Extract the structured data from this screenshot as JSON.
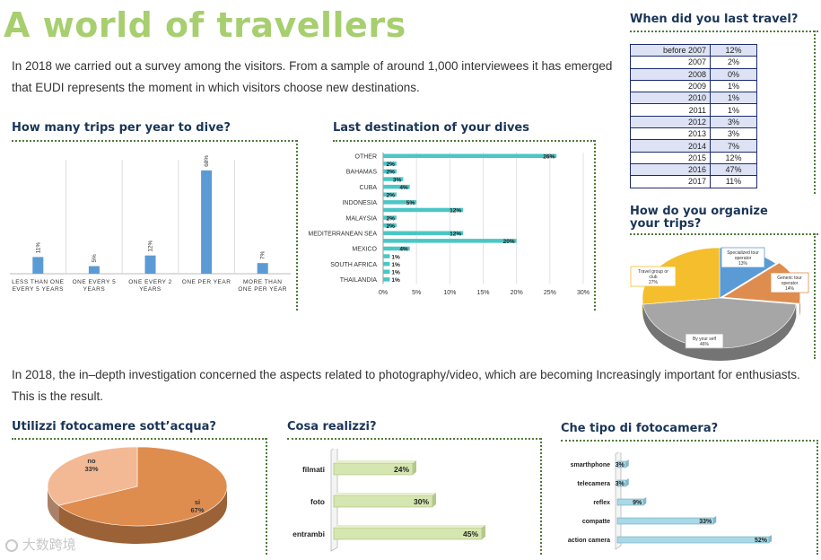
{
  "title": "A world of travellers",
  "intro": "In 2018 we carried out a survey among the visitors. From a sample of around 1,000 interviewees it has emerged that EUDI represents the moment in which visitors choose new destinations.",
  "intro2": "In 2018, the in–depth investigation concerned the aspects related to photography/video, which are becoming Increasingly important for enthusiasts. This is the result.",
  "sections": {
    "trips": "How many trips per year to dive?",
    "destination": "Last destination of your dives",
    "last_travel": "When did you last travel?",
    "organize": "How do you organize your trips?",
    "camera_use": "Utilizzi fotocamere sott’acqua?",
    "realize": "Cosa realizzi?",
    "camera_type": "Che tipo di fotocamera?"
  },
  "watermark": "大数跨境",
  "colors": {
    "title": "#a7cf6f",
    "bar_blue": "#5b9bd5",
    "bar_teal": "#4bc6c6",
    "bar_green": "#d6e6b0",
    "bar_lightblue": "#a9d8e6",
    "pie_orange": "#df8c4f",
    "pie_peach": "#f3b995",
    "pie_yellow": "#f5be2c",
    "pie_gray": "#a6a6a6"
  },
  "chart_data": [
    {
      "id": "trips",
      "type": "bar",
      "categories": [
        "LESS THAN ONE EVERY 5 YEARS",
        "ONE EVERY 5 YEARS",
        "ONE EVERY 2 YEARS",
        "ONE PER YEAR",
        "MORE THAN ONE PER YEAR"
      ],
      "values": [
        11,
        5,
        12,
        68,
        7
      ],
      "labels": [
        "11%",
        "5%",
        "12%",
        "68%",
        "7%"
      ],
      "ylim": [
        0,
        75
      ]
    },
    {
      "id": "destination",
      "type": "bar",
      "orientation": "horizontal",
      "categories": [
        "OTHER",
        "",
        "BAHAMAS",
        "",
        "CUBA",
        "",
        "INDONESIA",
        "",
        "MALAYSIA",
        "",
        "MEDITERRANEAN SEA",
        "",
        "MEXICO",
        "",
        "SOUTH AFRICA",
        "",
        "THAILANDIA"
      ],
      "values": [
        26,
        2,
        2,
        3,
        4,
        2,
        5,
        12,
        2,
        2,
        12,
        20,
        4,
        1,
        1,
        1,
        1
      ],
      "labels": [
        "26%",
        "2%",
        "2%",
        "3%",
        "4%",
        "2%",
        "5%",
        "12%",
        "2%",
        "2%",
        "12%",
        "20%",
        "4%",
        "1%",
        "1%",
        "1%",
        "1%"
      ],
      "xlim": [
        0,
        30
      ],
      "ticks": [
        "0%",
        "5%",
        "10%",
        "15%",
        "20%",
        "25%",
        "30%"
      ]
    },
    {
      "id": "last_travel",
      "type": "table",
      "rows": [
        {
          "year": "before 2007",
          "value": "12%"
        },
        {
          "year": "2007",
          "value": "2%"
        },
        {
          "year": "2008",
          "value": "0%"
        },
        {
          "year": "2009",
          "value": "1%"
        },
        {
          "year": "2010",
          "value": "1%"
        },
        {
          "year": "2011",
          "value": "1%"
        },
        {
          "year": "2012",
          "value": "3%"
        },
        {
          "year": "2013",
          "value": "3%"
        },
        {
          "year": "2014",
          "value": "7%"
        },
        {
          "year": "2015",
          "value": "12%"
        },
        {
          "year": "2016",
          "value": "47%"
        },
        {
          "year": "2017",
          "value": "11%"
        }
      ]
    },
    {
      "id": "organize",
      "type": "pie",
      "slices": [
        {
          "label": "Specialized tour operator",
          "value": 13,
          "text": "13%"
        },
        {
          "label": "Generic tour operator",
          "value": 14,
          "text": "14%"
        },
        {
          "label": "By your self",
          "value": 46,
          "text": "46%"
        },
        {
          "label": "Travel group or club",
          "value": 27,
          "text": "27%"
        }
      ]
    },
    {
      "id": "camera_use",
      "type": "pie",
      "slices": [
        {
          "label": "si",
          "value": 67,
          "text": "67%"
        },
        {
          "label": "no",
          "value": 33,
          "text": "33%"
        }
      ]
    },
    {
      "id": "realize",
      "type": "bar",
      "orientation": "horizontal",
      "categories": [
        "filmati",
        "foto",
        "entrambi"
      ],
      "values": [
        24,
        30,
        45
      ],
      "labels": [
        "24%",
        "30%",
        "45%"
      ]
    },
    {
      "id": "camera_type",
      "type": "bar",
      "orientation": "horizontal",
      "categories": [
        "smarthphone",
        "telecamera",
        "reflex",
        "compatte",
        "action camera"
      ],
      "values": [
        3,
        3,
        9,
        33,
        52
      ],
      "labels": [
        "3%",
        "3%",
        "9%",
        "33%",
        "52%"
      ]
    }
  ]
}
